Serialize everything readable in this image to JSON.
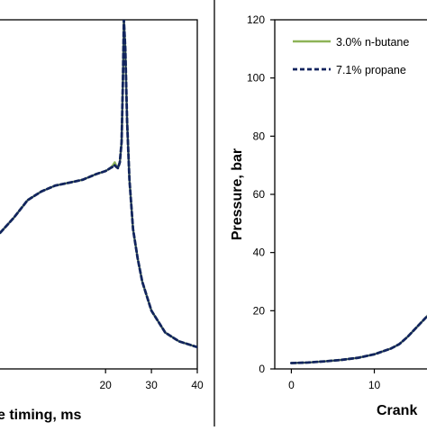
{
  "colors": {
    "series_1": "#8db357",
    "series_2": "#12255e",
    "axis": "#000000",
    "background": "#ffffff"
  },
  "chart_data": [
    {
      "type": "line",
      "xlabel": "e timing, ms",
      "ylabel": "",
      "xlim": [
        -4,
        40
      ],
      "ylim": [
        0,
        120
      ],
      "x_tick_labels": [
        "20",
        "30",
        "40"
      ],
      "grid": false,
      "series": [
        {
          "name": "",
          "x": [
            -4,
            0,
            3,
            6,
            9,
            12,
            15,
            18,
            20,
            21,
            21.6,
            22,
            22.3,
            22.7,
            23.1,
            23.5,
            23.8,
            24,
            24.3,
            24.7,
            25.2,
            26,
            27,
            28,
            30,
            33,
            36,
            40
          ],
          "y": [
            45,
            52,
            58,
            61,
            63,
            64,
            65,
            67,
            68,
            69,
            70,
            71,
            70,
            69,
            71,
            78,
            100,
            120,
            110,
            85,
            65,
            48,
            38,
            30,
            20,
            12.5,
            9.5,
            7.5
          ]
        },
        {
          "name": "",
          "x": [
            -4,
            0,
            3,
            6,
            9,
            12,
            15,
            18,
            20,
            21,
            21.6,
            22,
            22.3,
            22.7,
            23.1,
            23.5,
            23.8,
            24,
            24.3,
            24.7,
            25.2,
            26,
            27,
            28,
            30,
            33,
            36,
            40
          ],
          "y": [
            45,
            52,
            58,
            61,
            63,
            64,
            65,
            67,
            68,
            69,
            69.5,
            70,
            69.5,
            69,
            71,
            78,
            100,
            120,
            110,
            85,
            65,
            48,
            38,
            30,
            20,
            12.5,
            9.5,
            7.5
          ]
        }
      ]
    },
    {
      "type": "line",
      "xlabel": "Crank",
      "ylabel": "Pressure, bar",
      "xlim": [
        -2,
        17
      ],
      "ylim": [
        0,
        120
      ],
      "x_tick_labels": [
        "0",
        "10"
      ],
      "y_tick_labels": [
        "0",
        "20",
        "40",
        "60",
        "80",
        "100",
        "120"
      ],
      "grid": false,
      "legend_position": "top-right",
      "series": [
        {
          "name": "3.0% n-butane",
          "x": [
            0,
            2,
            4,
            6,
            8,
            10,
            12,
            13,
            14,
            15,
            16,
            17
          ],
          "y": [
            2,
            2.2,
            2.6,
            3.1,
            3.8,
            5,
            7,
            8.5,
            11,
            14,
            17,
            20
          ]
        },
        {
          "name": "7.1% propane",
          "x": [
            0,
            2,
            4,
            6,
            8,
            10,
            12,
            13,
            14,
            15,
            16,
            17
          ],
          "y": [
            2,
            2.2,
            2.6,
            3.1,
            3.8,
            5,
            7,
            8.5,
            11,
            14,
            17,
            20
          ]
        }
      ]
    }
  ]
}
